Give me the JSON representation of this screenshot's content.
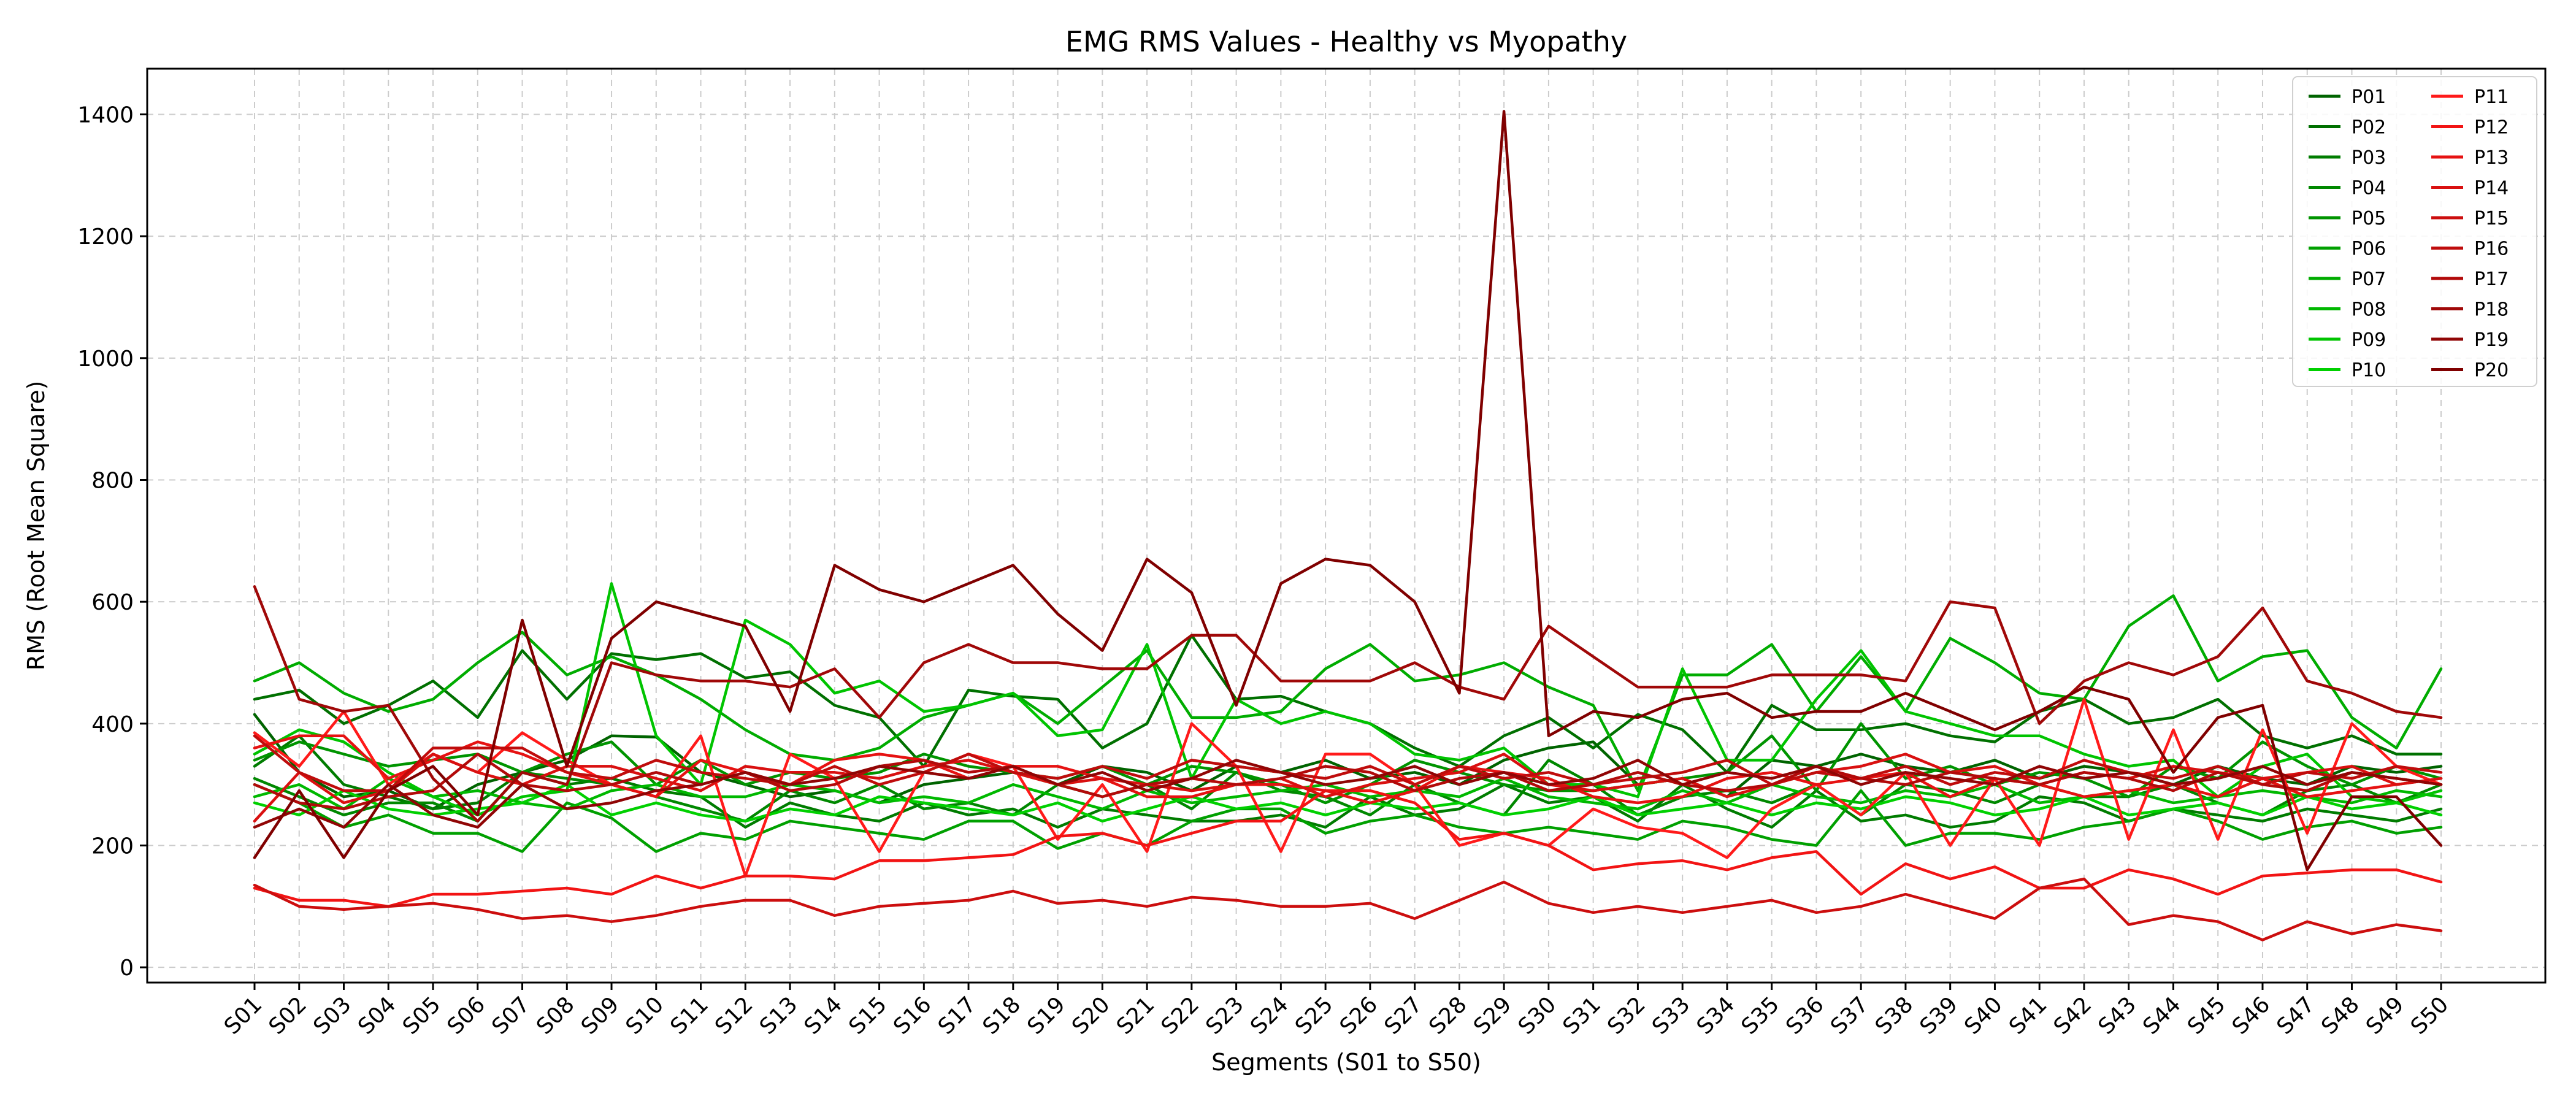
{
  "chart_data": {
    "type": "line",
    "title": "EMG RMS Values - Healthy vs Myopathy",
    "xlabel": "Segments (S01 to S50)",
    "ylabel": "RMS (Root Mean Square)",
    "ylim": [
      -25,
      1475
    ],
    "yticks": [
      0,
      200,
      400,
      600,
      800,
      1000,
      1200,
      1400
    ],
    "grid": true,
    "legend_position": "top-right",
    "legend_columns": 2,
    "categories": [
      "S01",
      "S02",
      "S03",
      "S04",
      "S05",
      "S06",
      "S07",
      "S08",
      "S09",
      "S10",
      "S11",
      "S12",
      "S13",
      "S14",
      "S15",
      "S16",
      "S17",
      "S18",
      "S19",
      "S20",
      "S21",
      "S22",
      "S23",
      "S24",
      "S25",
      "S26",
      "S27",
      "S28",
      "S29",
      "S30",
      "S31",
      "S32",
      "S33",
      "S34",
      "S35",
      "S36",
      "S37",
      "S38",
      "S39",
      "S40",
      "S41",
      "S42",
      "S43",
      "S44",
      "S45",
      "S46",
      "S47",
      "S48",
      "S49",
      "S50"
    ],
    "series": [
      {
        "name": "P01",
        "color": "#006400",
        "values": [
          415,
          320,
          280,
          290,
          260,
          300,
          320,
          340,
          380,
          378,
          320,
          300,
          280,
          290,
          270,
          300,
          310,
          320,
          300,
          330,
          320,
          290,
          330,
          320,
          340,
          310,
          320,
          300,
          340,
          360,
          370,
          300,
          310,
          280,
          340,
          330,
          350,
          330,
          320,
          340,
          310,
          330,
          320,
          300,
          330,
          310,
          300,
          330,
          320,
          330
        ]
      },
      {
        "name": "P02",
        "color": "#007000",
        "values": [
          440,
          455,
          400,
          430,
          470,
          410,
          520,
          440,
          515,
          505,
          515,
          475,
          485,
          430,
          410,
          330,
          455,
          445,
          440,
          360,
          400,
          545,
          440,
          445,
          420,
          400,
          360,
          330,
          380,
          410,
          360,
          415,
          390,
          320,
          430,
          390,
          390,
          400,
          380,
          370,
          420,
          440,
          400,
          410,
          440,
          380,
          360,
          380,
          350,
          350
        ]
      },
      {
        "name": "P03",
        "color": "#007c00",
        "values": [
          330,
          380,
          300,
          280,
          260,
          270,
          320,
          300,
          310,
          290,
          280,
          230,
          270,
          250,
          240,
          270,
          250,
          260,
          230,
          260,
          250,
          240,
          240,
          250,
          230,
          280,
          250,
          260,
          300,
          270,
          280,
          240,
          300,
          260,
          230,
          290,
          240,
          250,
          230,
          240,
          280,
          270,
          240,
          260,
          250,
          240,
          260,
          250,
          240,
          260
        ]
      },
      {
        "name": "P04",
        "color": "#008800",
        "values": [
          310,
          280,
          250,
          270,
          270,
          240,
          320,
          310,
          300,
          280,
          260,
          240,
          290,
          270,
          300,
          260,
          270,
          250,
          300,
          280,
          300,
          260,
          320,
          290,
          280,
          250,
          300,
          270,
          250,
          340,
          300,
          250,
          280,
          290,
          270,
          300,
          250,
          300,
          290,
          270,
          300,
          280,
          280,
          300,
          270,
          250,
          290,
          300,
          270,
          300
        ]
      },
      {
        "name": "P05",
        "color": "#009400",
        "values": [
          340,
          370,
          350,
          330,
          340,
          350,
          320,
          350,
          370,
          300,
          340,
          300,
          320,
          310,
          320,
          350,
          330,
          320,
          310,
          330,
          300,
          330,
          320,
          300,
          270,
          300,
          340,
          320,
          300,
          290,
          290,
          300,
          310,
          320,
          380,
          290,
          400,
          310,
          330,
          300,
          320,
          310,
          280,
          330,
          310,
          370,
          330,
          300,
          330,
          310
        ]
      },
      {
        "name": "P06",
        "color": "#00a000",
        "values": [
          300,
          270,
          230,
          250,
          220,
          220,
          190,
          270,
          245,
          190,
          220,
          210,
          240,
          230,
          220,
          210,
          240,
          240,
          195,
          220,
          200,
          240,
          260,
          260,
          220,
          240,
          250,
          230,
          220,
          230,
          220,
          210,
          240,
          230,
          210,
          200,
          290,
          200,
          220,
          220,
          210,
          230,
          240,
          260,
          240,
          210,
          230,
          240,
          220,
          230
        ]
      },
      {
        "name": "P07",
        "color": "#00ac00",
        "values": [
          470,
          500,
          450,
          420,
          440,
          500,
          550,
          480,
          510,
          480,
          440,
          390,
          350,
          340,
          360,
          410,
          430,
          450,
          400,
          460,
          520,
          410,
          410,
          420,
          490,
          530,
          470,
          480,
          500,
          460,
          430,
          290,
          480,
          480,
          530,
          420,
          510,
          420,
          540,
          500,
          450,
          440,
          560,
          610,
          470,
          510,
          520,
          410,
          360,
          490
        ]
      },
      {
        "name": "P08",
        "color": "#00b800",
        "values": [
          280,
          300,
          260,
          310,
          280,
          290,
          270,
          260,
          290,
          300,
          280,
          280,
          300,
          290,
          270,
          280,
          270,
          300,
          280,
          260,
          290,
          270,
          280,
          290,
          300,
          280,
          290,
          280,
          310,
          280,
          270,
          260,
          290,
          270,
          300,
          280,
          270,
          290,
          280,
          300,
          270,
          280,
          290,
          270,
          280,
          290,
          280,
          270,
          290,
          280
        ]
      },
      {
        "name": "P09",
        "color": "#00c400",
        "values": [
          350,
          390,
          370,
          320,
          280,
          250,
          280,
          290,
          630,
          380,
          300,
          570,
          530,
          450,
          470,
          420,
          430,
          450,
          380,
          390,
          530,
          310,
          440,
          400,
          420,
          400,
          350,
          340,
          360,
          300,
          300,
          280,
          490,
          340,
          340,
          440,
          520,
          420,
          400,
          380,
          380,
          350,
          330,
          340,
          280,
          330,
          350,
          280,
          270,
          290
        ]
      },
      {
        "name": "P10",
        "color": "#00d000",
        "values": [
          270,
          250,
          290,
          260,
          250,
          260,
          270,
          300,
          250,
          270,
          250,
          240,
          260,
          250,
          280,
          270,
          260,
          250,
          270,
          240,
          260,
          280,
          260,
          270,
          250,
          270,
          260,
          270,
          250,
          260,
          280,
          250,
          260,
          270,
          250,
          270,
          260,
          280,
          270,
          250,
          260,
          280,
          250,
          260,
          270,
          250,
          280,
          260,
          270,
          250
        ]
      },
      {
        "name": "P11",
        "color": "#ff1a1a",
        "values": [
          385,
          330,
          420,
          300,
          350,
          320,
          385,
          340,
          300,
          280,
          380,
          150,
          350,
          310,
          190,
          320,
          350,
          330,
          210,
          300,
          190,
          400,
          330,
          190,
          350,
          350,
          300,
          200,
          220,
          200,
          260,
          230,
          220,
          180,
          260,
          300,
          250,
          320,
          200,
          310,
          200,
          440,
          210,
          390,
          210,
          390,
          220,
          400,
          330,
          300
        ]
      },
      {
        "name": "P12",
        "color": "#f21414",
        "values": [
          130,
          110,
          110,
          100,
          120,
          120,
          125,
          130,
          120,
          150,
          130,
          150,
          150,
          145,
          175,
          175,
          180,
          185,
          215,
          220,
          200,
          220,
          240,
          240,
          290,
          290,
          270,
          210,
          220,
          200,
          160,
          170,
          175,
          160,
          180,
          190,
          120,
          170,
          145,
          165,
          130,
          130,
          160,
          145,
          120,
          150,
          155,
          160,
          160,
          140
        ]
      },
      {
        "name": "P13",
        "color": "#e61212",
        "values": [
          360,
          380,
          380,
          310,
          340,
          370,
          350,
          320,
          300,
          280,
          340,
          320,
          300,
          340,
          350,
          340,
          310,
          330,
          330,
          310,
          280,
          280,
          300,
          300,
          290,
          270,
          290,
          330,
          320,
          310,
          280,
          270,
          280,
          310,
          320,
          300,
          310,
          320,
          280,
          310,
          300,
          280,
          290,
          300,
          280,
          310,
          280,
          290,
          300,
          310
        ]
      },
      {
        "name": "P14",
        "color": "#d91010",
        "values": [
          240,
          320,
          270,
          290,
          350,
          320,
          300,
          330,
          330,
          310,
          290,
          330,
          320,
          320,
          310,
          330,
          340,
          320,
          300,
          310,
          300,
          290,
          300,
          310,
          280,
          300,
          310,
          320,
          350,
          300,
          290,
          300,
          310,
          280,
          300,
          320,
          330,
          350,
          320,
          330,
          300,
          320,
          310,
          330,
          320,
          310,
          320,
          330,
          300,
          310
        ]
      },
      {
        "name": "P15",
        "color": "#cc0e0e",
        "values": [
          135,
          100,
          95,
          100,
          105,
          95,
          80,
          85,
          75,
          85,
          100,
          110,
          110,
          85,
          100,
          105,
          110,
          125,
          105,
          110,
          100,
          115,
          110,
          100,
          100,
          105,
          80,
          110,
          140,
          105,
          90,
          100,
          90,
          100,
          110,
          90,
          100,
          120,
          100,
          80,
          130,
          145,
          70,
          85,
          75,
          45,
          75,
          55,
          70,
          60
        ]
      },
      {
        "name": "P16",
        "color": "#bf0c0c",
        "values": [
          380,
          320,
          290,
          290,
          360,
          360,
          360,
          320,
          310,
          340,
          320,
          310,
          300,
          330,
          300,
          320,
          350,
          320,
          310,
          330,
          310,
          340,
          330,
          320,
          310,
          330,
          300,
          330,
          310,
          320,
          300,
          310,
          320,
          340,
          300,
          320,
          310,
          330,
          300,
          320,
          310,
          340,
          320,
          310,
          330,
          300,
          320,
          310,
          330,
          320
        ]
      },
      {
        "name": "P17",
        "color": "#b20a0a",
        "values": [
          300,
          270,
          260,
          280,
          290,
          350,
          300,
          290,
          300,
          320,
          300,
          320,
          290,
          300,
          330,
          340,
          320,
          330,
          300,
          280,
          300,
          310,
          300,
          310,
          330,
          320,
          290,
          310,
          320,
          290,
          300,
          320,
          300,
          290,
          300,
          330,
          310,
          300,
          320,
          310,
          300,
          320,
          310,
          290,
          320,
          300,
          290,
          320,
          310,
          300
        ]
      },
      {
        "name": "P18",
        "color": "#a00808",
        "values": [
          625,
          440,
          420,
          430,
          310,
          240,
          320,
          300,
          500,
          480,
          470,
          470,
          460,
          490,
          410,
          500,
          530,
          500,
          500,
          490,
          490,
          545,
          545,
          470,
          470,
          470,
          500,
          460,
          440,
          560,
          510,
          460,
          460,
          460,
          480,
          480,
          480,
          470,
          600,
          590,
          400,
          470,
          500,
          480,
          510,
          590,
          470,
          450,
          420,
          410
        ]
      },
      {
        "name": "P19",
        "color": "#900505",
        "values": [
          230,
          260,
          230,
          300,
          250,
          230,
          300,
          260,
          270,
          290,
          300,
          320,
          300,
          310,
          330,
          320,
          310,
          330,
          300,
          320,
          290,
          310,
          340,
          320,
          300,
          310,
          330,
          300,
          320,
          300,
          310,
          340,
          300,
          320,
          310,
          330,
          300,
          320,
          310,
          300,
          330,
          310,
          320,
          300,
          310,
          330,
          300,
          320,
          310,
          300
        ]
      },
      {
        "name": "P20",
        "color": "#800000",
        "values": [
          180,
          290,
          180,
          290,
          330,
          250,
          570,
          330,
          540,
          600,
          580,
          560,
          420,
          660,
          620,
          600,
          630,
          660,
          580,
          520,
          670,
          615,
          430,
          630,
          670,
          660,
          600,
          450,
          1405,
          380,
          420,
          410,
          440,
          450,
          410,
          420,
          420,
          450,
          420,
          390,
          420,
          460,
          440,
          320,
          410,
          430,
          160,
          280,
          280,
          200
        ]
      }
    ]
  }
}
